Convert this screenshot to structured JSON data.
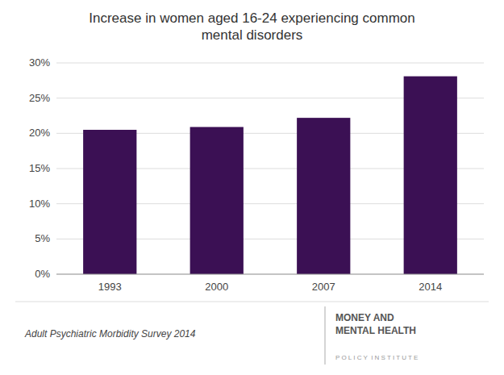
{
  "chart_data": {
    "type": "bar",
    "title": "Increase in women aged 16-24 experiencing common\nmental disorders",
    "categories": [
      "1993",
      "2000",
      "2007",
      "2014"
    ],
    "values": [
      0.205,
      0.209,
      0.222,
      0.281
    ],
    "color": "#3b1054",
    "ylim": [
      0,
      0.3
    ],
    "yticks": [
      {
        "value": 0,
        "label": "0%"
      },
      {
        "value": 0.05,
        "label": "5%"
      },
      {
        "value": 0.1,
        "label": "10%"
      },
      {
        "value": 0.15,
        "label": "15%"
      },
      {
        "value": 0.2,
        "label": "20%"
      },
      {
        "value": 0.25,
        "label": "25%"
      },
      {
        "value": 0.3,
        "label": "30%"
      }
    ],
    "grid": true,
    "annotations": [
      "Adult Psychiatric Morbidity Survey 2014",
      "MONEY AND\nMENTAL HEALTH",
      "P O L I C Y  I N S T I T U T E"
    ]
  }
}
